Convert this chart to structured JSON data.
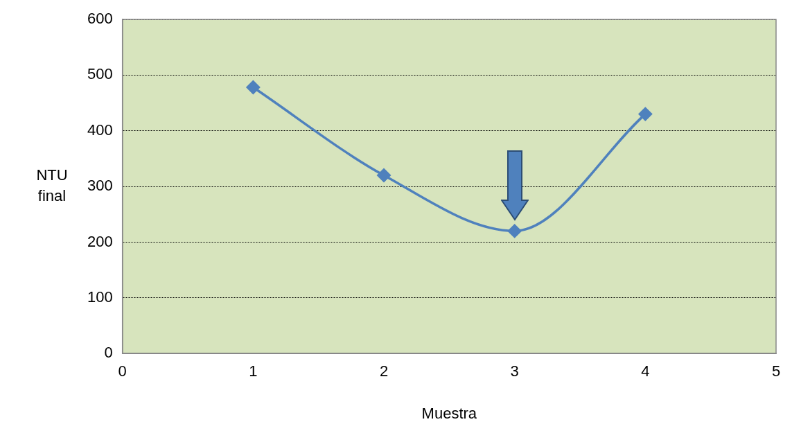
{
  "chart_data": {
    "type": "line",
    "xlabel": "Muestra",
    "ylabel": "NTU final",
    "x": [
      1,
      2,
      3,
      4
    ],
    "series": [
      {
        "color": "#4f81bd",
        "values": [
          478,
          320,
          220,
          430
        ]
      }
    ],
    "xlim": [
      0,
      5
    ],
    "xticks": [
      0,
      1,
      2,
      3,
      4,
      5
    ],
    "ylim": [
      0,
      600
    ],
    "yticks": [
      0,
      100,
      200,
      300,
      400,
      500,
      600
    ],
    "grid": "y",
    "legend": false,
    "marker": "diamond"
  }
}
